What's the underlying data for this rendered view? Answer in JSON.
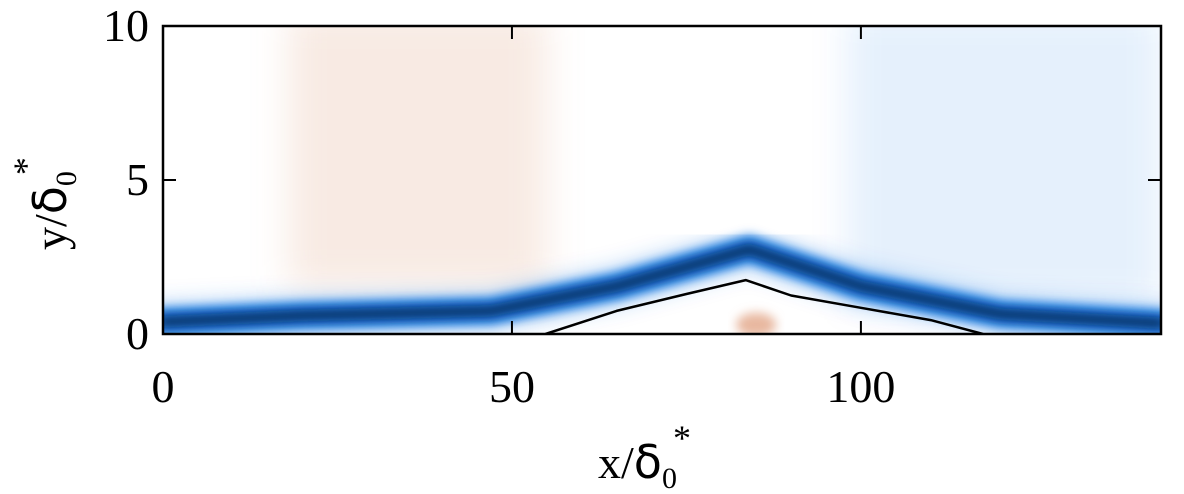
{
  "chart_data": {
    "type": "heatmap",
    "xlabel": {
      "base": "x/",
      "greek": "δ",
      "sub": "0",
      "sup": "*"
    },
    "ylabel": {
      "base": "y/",
      "greek": "δ",
      "sub": "0",
      "sup": "*"
    },
    "xlim": [
      0,
      143
    ],
    "ylim": [
      0,
      10
    ],
    "x_ticks": [
      0,
      50,
      100
    ],
    "y_ticks": [
      0,
      5,
      10
    ],
    "x_tick_labels": [
      "0",
      "50",
      "100"
    ],
    "y_tick_labels": [
      "0",
      "5",
      "10"
    ],
    "grid": false,
    "legend": "none",
    "colormap": {
      "negative": "#0a6fe0",
      "positive": "#e0a080",
      "zero": "#ffffff",
      "deep": "#0a1a2a"
    },
    "contour_line": {
      "color": "#000000",
      "points": [
        [
          54.8,
          0.0
        ],
        [
          65,
          0.75
        ],
        [
          75,
          1.3
        ],
        [
          83.5,
          1.75
        ],
        [
          90,
          1.25
        ],
        [
          100,
          0.85
        ],
        [
          110,
          0.45
        ],
        [
          117.5,
          0.0
        ]
      ]
    },
    "shear_layer_ridge": {
      "points": [
        [
          0,
          0.4
        ],
        [
          20,
          0.6
        ],
        [
          47,
          0.75
        ],
        [
          65,
          1.55
        ],
        [
          84,
          2.75
        ],
        [
          100,
          1.55
        ],
        [
          120,
          0.65
        ],
        [
          143,
          0.35
        ]
      ]
    }
  }
}
